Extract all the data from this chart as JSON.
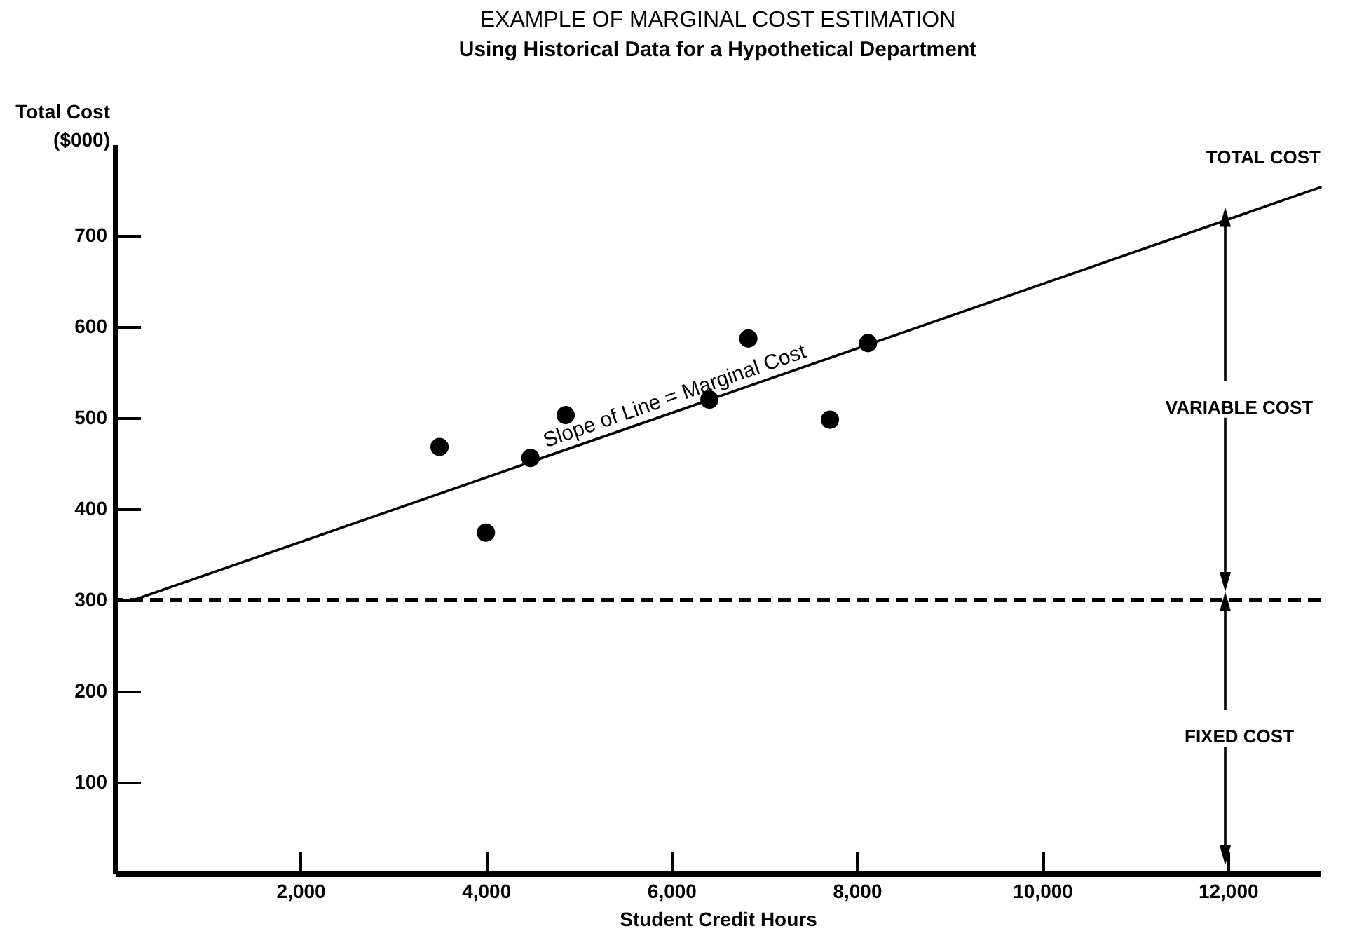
{
  "chart_data": {
    "type": "scatter",
    "title": "EXAMPLE OF MARGINAL COST ESTIMATION",
    "subtitle": "Using Historical Data for a Hypothetical Department",
    "xlabel": "Student Credit Hours",
    "ylabel": "Total Cost ($000)",
    "series": [
      {
        "color": "#000000",
        "x": [
          3500,
          4000,
          4480,
          4860,
          6410,
          6830,
          7710,
          8120
        ],
        "values": [
          468,
          374,
          456,
          503,
          520,
          587,
          498,
          582
        ]
      },
      {
        "type": "line",
        "color": "#000000",
        "marker": "none",
        "x": [
          200,
          13000
        ],
        "values": [
          300,
          753
        ]
      }
    ],
    "xlim": [
      0,
      13000
    ],
    "xticks": [
      {
        "value": 2000,
        "label": "2,000"
      },
      {
        "value": 4000,
        "label": "4,000"
      },
      {
        "value": 6000,
        "label": "6,000"
      },
      {
        "value": 8000,
        "label": "8,000"
      },
      {
        "value": 10000,
        "label": "10,000"
      },
      {
        "value": 12000,
        "label": "12,000"
      }
    ],
    "ylim": [
      0,
      800
    ],
    "yticks": [
      100,
      200,
      300,
      400,
      500,
      600,
      700
    ],
    "ref_lines": [
      {
        "axis": "y",
        "value": 300,
        "line_style": "dashed",
        "color": "#000000"
      }
    ],
    "annotations": [
      "TOTAL COST",
      "Slope of Line = Marginal Cost",
      "VARIABLE COST",
      "FIXED COST"
    ],
    "grid": false,
    "marker": "circle",
    "line_style": "solid"
  }
}
